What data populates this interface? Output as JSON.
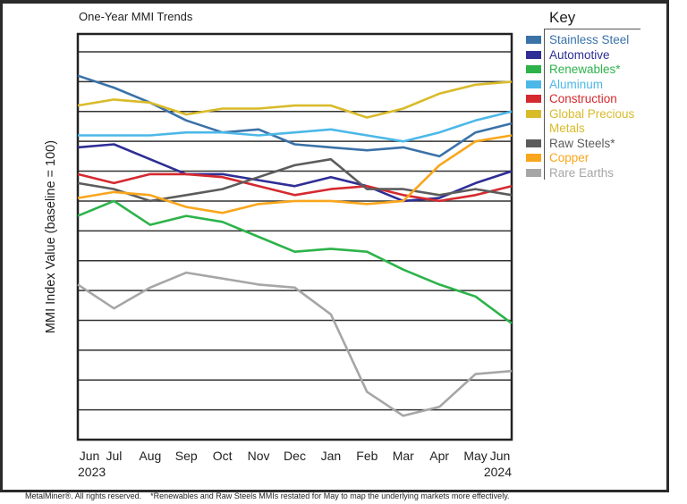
{
  "chart_data": {
    "type": "line",
    "title": "One-Year MMI Trends",
    "ylabel": "MMI Index Value (baseline = 100)",
    "xlabel": "",
    "categories": [
      "Jun",
      "Jul",
      "Aug",
      "Sep",
      "Oct",
      "Nov",
      "Dec",
      "Jan",
      "Feb",
      "Mar",
      "Apr",
      "May",
      "Jun"
    ],
    "year_labels": {
      "start": "2023",
      "end": "2024"
    },
    "ylim": [
      0,
      13.6
    ],
    "y_ticks_labeled": false,
    "grid": true,
    "legend": {
      "title": "Key",
      "placement": "right"
    },
    "series": [
      {
        "name": "Stainless Steel",
        "color": "#3a72a8",
        "values": [
          12.2,
          11.8,
          11.3,
          10.7,
          10.3,
          10.4,
          9.9,
          9.8,
          9.7,
          9.8,
          9.5,
          10.3,
          10.6
        ]
      },
      {
        "name": "Automotive",
        "color": "#2e2e96",
        "values": [
          9.8,
          9.9,
          9.4,
          8.9,
          8.9,
          8.7,
          8.5,
          8.8,
          8.5,
          8.0,
          8.1,
          8.6,
          9.0
        ]
      },
      {
        "name": "Renewables*",
        "color": "#2db34a",
        "values": [
          7.5,
          8.0,
          7.2,
          7.5,
          7.3,
          6.8,
          6.3,
          6.4,
          6.3,
          5.7,
          5.2,
          4.8,
          3.9
        ]
      },
      {
        "name": "Aluminum",
        "color": "#4cb8e8",
        "values": [
          10.2,
          10.2,
          10.2,
          10.3,
          10.3,
          10.2,
          10.3,
          10.4,
          10.2,
          10.0,
          10.3,
          10.7,
          11.0
        ]
      },
      {
        "name": "Construction",
        "color": "#d42a2f",
        "values": [
          8.9,
          8.6,
          8.9,
          8.9,
          8.8,
          8.5,
          8.2,
          8.4,
          8.5,
          8.2,
          8.0,
          8.2,
          8.5
        ]
      },
      {
        "name": "Global Precious Metals",
        "color": "#d9bb2a",
        "values": [
          11.2,
          11.4,
          11.3,
          10.9,
          11.1,
          11.1,
          11.2,
          11.2,
          10.8,
          11.1,
          11.6,
          11.9,
          12.0
        ]
      },
      {
        "name": "Raw Steels*",
        "color": "#5c5c5c",
        "values": [
          8.6,
          8.4,
          8.0,
          8.2,
          8.4,
          8.8,
          9.2,
          9.4,
          8.4,
          8.4,
          8.2,
          8.4,
          8.2
        ]
      },
      {
        "name": "Copper",
        "color": "#f9a61c",
        "values": [
          8.1,
          8.3,
          8.2,
          7.8,
          7.6,
          7.9,
          8.0,
          8.0,
          7.9,
          8.0,
          9.2,
          10.0,
          10.2
        ]
      },
      {
        "name": "Rare Earths",
        "color": "#a6a6a6",
        "values": [
          5.2,
          4.4,
          5.1,
          5.6,
          5.4,
          5.2,
          5.1,
          4.2,
          1.6,
          0.8,
          1.1,
          2.2,
          2.3
        ]
      }
    ]
  },
  "key": {
    "title": "Key",
    "items": [
      {
        "label": "Stainless Steel",
        "color": "#3a72a8"
      },
      {
        "label": "Automotive",
        "color": "#2e2e96"
      },
      {
        "label": "Renewables*",
        "color": "#2db34a"
      },
      {
        "label": "Aluminum",
        "color": "#4cb8e8"
      },
      {
        "label": "Construction",
        "color": "#d42a2f"
      },
      {
        "label": "Global Precious",
        "label2": "Metals",
        "color": "#d9bb2a"
      },
      {
        "label": "Raw Steels*",
        "color": "#5c5c5c"
      },
      {
        "label": "Copper",
        "color": "#f9a61c"
      },
      {
        "label": "Rare Earths",
        "color": "#a6a6a6"
      }
    ]
  },
  "footer": "MetalMiner®. All rights reserved.    *Renewables and Raw Steels MMIs restated for May to map the underlying markets more effectively."
}
